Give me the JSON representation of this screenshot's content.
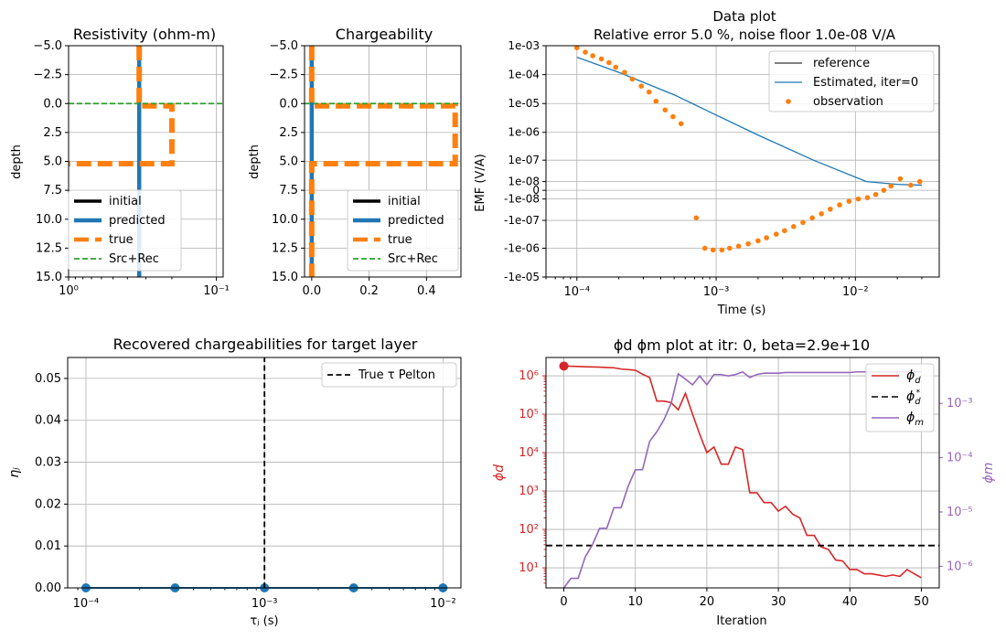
{
  "chart_data": [
    {
      "id": "resistivity",
      "type": "line",
      "title": "Resistivity (ohm-m)",
      "ylabel": "depth",
      "xscale": "log",
      "xlim": [
        1.0,
        0.09
      ],
      "ylim": [
        15,
        -5
      ],
      "yticks": [
        -5.0,
        -2.5,
        0.0,
        2.5,
        5.0,
        7.5,
        10.0,
        12.5,
        15.0
      ],
      "ytick_labels": [
        "−5.0",
        "−2.5",
        "0.0",
        "2.5",
        "5.0",
        "7.5",
        "10.0",
        "12.5",
        "15.0"
      ],
      "xticks": [
        1.0,
        0.1
      ],
      "xtick_labels": [
        "10⁰",
        "10⁻¹"
      ],
      "grid": true,
      "legend": "lower-left",
      "series": [
        {
          "name": "initial",
          "color": "#000000",
          "style": "solid",
          "points": [
            [
              0.333,
              -5
            ],
            [
              0.333,
              15
            ]
          ]
        },
        {
          "name": "predicted",
          "color": "#1f77b4",
          "style": "solid",
          "points": [
            [
              0.333,
              -5
            ],
            [
              0.333,
              15
            ]
          ]
        },
        {
          "name": "true",
          "color": "#ff7f0e",
          "style": "dashed",
          "points": [
            [
              0.333,
              -5
            ],
            [
              0.333,
              0.2
            ],
            [
              0.2,
              0.2
            ],
            [
              0.2,
              5.2
            ],
            [
              1.0,
              5.2
            ]
          ]
        },
        {
          "name": "Src+Rec",
          "color": "#2ca02c",
          "style": "dashed-thin",
          "points": [
            [
              1.0,
              0
            ],
            [
              0.09,
              0
            ]
          ]
        }
      ]
    },
    {
      "id": "chargeability",
      "type": "line",
      "title": "Chargeability",
      "ylabel": "depth",
      "xscale": "linear",
      "xlim": [
        -0.025,
        0.52
      ],
      "ylim": [
        15,
        -5
      ],
      "yticks": [
        -5.0,
        -2.5,
        0.0,
        2.5,
        5.0,
        7.5,
        10.0,
        12.5,
        15.0
      ],
      "ytick_labels": [
        "−5.0",
        "−2.5",
        "0.0",
        "2.5",
        "5.0",
        "7.5",
        "10.0",
        "12.5",
        "15.0"
      ],
      "xticks": [
        0.0,
        0.2,
        0.4
      ],
      "xtick_labels": [
        "0.0",
        "0.2",
        "0.4"
      ],
      "grid": true,
      "legend": "lower-right",
      "series": [
        {
          "name": "initial",
          "color": "#000000",
          "style": "solid",
          "points": [
            [
              0.0,
              -5
            ],
            [
              0.0,
              15
            ]
          ]
        },
        {
          "name": "predicted",
          "color": "#1f77b4",
          "style": "solid",
          "points": [
            [
              0.0,
              -5
            ],
            [
              0.0,
              15
            ]
          ]
        },
        {
          "name": "true",
          "color": "#ff7f0e",
          "style": "dashed",
          "points": [
            [
              0.0,
              -5
            ],
            [
              0.0,
              0.2
            ],
            [
              0.5,
              0.2
            ],
            [
              0.5,
              5.2
            ],
            [
              0.0,
              5.2
            ],
            [
              0.0,
              15
            ]
          ]
        },
        {
          "name": "Src+Rec",
          "color": "#2ca02c",
          "style": "dashed-thin",
          "points": [
            [
              -0.025,
              0
            ],
            [
              0.52,
              0
            ]
          ]
        }
      ]
    },
    {
      "id": "dataplot",
      "type": "line",
      "title": "Data plot",
      "subtitle": "Relative error 5.0 %, noise floor 1.0e-08 V/A",
      "xlabel": "Time (s)",
      "ylabel": "EMF (V/A)",
      "xscale": "log",
      "yscale": "symlog",
      "linthresh": 1e-08,
      "xlim": [
        6e-05,
        0.04
      ],
      "ylim": [
        -1e-05,
        0.001
      ],
      "xticks": [
        0.0001,
        0.001,
        0.01
      ],
      "xtick_labels": [
        "10⁻⁴",
        "10⁻³",
        "10⁻²"
      ],
      "yticks": [
        0.001,
        0.0001,
        1e-05,
        1e-06,
        1e-07,
        1e-08,
        0,
        -1e-08,
        -1e-07,
        -1e-06,
        -1e-05
      ],
      "ytick_labels": [
        "1e-03",
        "1e-04",
        "1e-05",
        "1e-06",
        "1e-07",
        "1e-08",
        "0",
        "-1e-08",
        "-1e-07",
        "-1e-06",
        "-1e-05"
      ],
      "grid": true,
      "legend": "upper-right",
      "series": [
        {
          "name": "reference",
          "color": "#333333",
          "style": "solid",
          "points": []
        },
        {
          "name": "Estimated, iter=0",
          "color": "#1f77b4",
          "style": "solid",
          "points": [
            [
              0.0001,
              0.0004
            ],
            [
              0.0002,
              0.00012
            ],
            [
              0.0005,
              2e-05
            ],
            [
              0.001,
              4e-06
            ],
            [
              0.002,
              8e-07
            ],
            [
              0.005,
              1e-07
            ],
            [
              0.012,
              1e-08
            ],
            [
              0.02,
              6e-09
            ],
            [
              0.03,
              5e-09
            ]
          ]
        },
        {
          "name": "observation",
          "color": "#ff7f0e",
          "style": "markers",
          "points": [
            [
              0.0001,
              0.00085
            ],
            [
              0.000115,
              0.0006
            ],
            [
              0.00013,
              0.00045
            ],
            [
              0.00015,
              0.00035
            ],
            [
              0.00017,
              0.00026
            ],
            [
              0.00019,
              0.00018
            ],
            [
              0.00022,
              0.00012
            ],
            [
              0.00025,
              7e-05
            ],
            [
              0.00029,
              4e-05
            ],
            [
              0.00033,
              2.5e-05
            ],
            [
              0.00037,
              1.2e-05
            ],
            [
              0.00043,
              6e-06
            ],
            [
              0.00049,
              3.5e-06
            ],
            [
              0.00056,
              2e-06
            ],
            [
              0.00072,
              -8e-08
            ],
            [
              0.00083,
              -1e-06
            ],
            [
              0.00095,
              -1.15e-06
            ],
            [
              0.0011,
              -1.15e-06
            ],
            [
              0.00125,
              -1e-06
            ],
            [
              0.00145,
              -8.5e-07
            ],
            [
              0.0017,
              -7e-07
            ],
            [
              0.002,
              -5.5e-07
            ],
            [
              0.0023,
              -4.3e-07
            ],
            [
              0.0027,
              -3.2e-07
            ],
            [
              0.0031,
              -2.4e-07
            ],
            [
              0.0036,
              -1.7e-07
            ],
            [
              0.0042,
              -1.2e-07
            ],
            [
              0.0049,
              -8e-08
            ],
            [
              0.0057,
              -5.5e-08
            ],
            [
              0.0066,
              -3.5e-08
            ],
            [
              0.0077,
              -2.2e-08
            ],
            [
              0.009,
              -1.4e-08
            ],
            [
              0.0105,
              -1e-08
            ],
            [
              0.0122,
              -8e-09
            ],
            [
              0.014,
              -4e-09
            ],
            [
              0.016,
              0
            ],
            [
              0.018,
              4e-09
            ],
            [
              0.021,
              1.5e-08
            ],
            [
              0.025,
              5e-09
            ],
            [
              0.029,
              1e-08
            ]
          ]
        }
      ]
    },
    {
      "id": "chargeabilities",
      "type": "line",
      "title": "Recovered chargeabilities for target layer",
      "xlabel": "τⱼ (s)",
      "ylabel": "ηⱼ",
      "xscale": "log",
      "xlim": [
        7.9e-05,
        0.0126
      ],
      "ylim": [
        0,
        0.055
      ],
      "xticks": [
        0.0001,
        0.001,
        0.01
      ],
      "xtick_labels": [
        "10⁻⁴",
        "10⁻³",
        "10⁻²"
      ],
      "yticks": [
        0.0,
        0.01,
        0.02,
        0.03,
        0.04,
        0.05
      ],
      "ytick_labels": [
        "0.00",
        "0.01",
        "0.02",
        "0.03",
        "0.04",
        "0.05"
      ],
      "grid": true,
      "legend": "upper-right",
      "series": [
        {
          "name": "",
          "color": "#1f77b4",
          "style": "line-markers",
          "points": [
            [
              0.0001,
              0
            ],
            [
              0.000316,
              0
            ],
            [
              0.001,
              0
            ],
            [
              0.00316,
              0
            ],
            [
              0.01,
              0
            ]
          ]
        },
        {
          "name": "True τ Pelton",
          "color": "#000000",
          "style": "dashed",
          "points": [
            [
              0.001,
              0
            ],
            [
              0.001,
              0.055
            ]
          ]
        }
      ]
    },
    {
      "id": "misfit",
      "type": "line",
      "title": "ϕd ϕm plot at itr:  0,  beta=2.9e+10",
      "xlabel": "Iteration",
      "ylabel": "ϕd",
      "ylabel_right": "ϕm",
      "xlim": [
        -2.5,
        52.5
      ],
      "ylim": [
        3,
        3000000.0
      ],
      "ylim_right": [
        4e-07,
        0.007
      ],
      "yscale": "log",
      "yscale_right": "log",
      "xticks": [
        0,
        10,
        20,
        30,
        40,
        50
      ],
      "xtick_labels": [
        "0",
        "10",
        "20",
        "30",
        "40",
        "50"
      ],
      "yticks": [
        10,
        100,
        1000,
        10000,
        100000,
        1000000
      ],
      "ytick_labels": [
        "10¹",
        "10²",
        "10³",
        "10⁴",
        "10⁵",
        "10⁶"
      ],
      "yticks_right": [
        1e-06,
        1e-05,
        0.0001,
        0.001
      ],
      "ytick_labels_right": [
        "10⁻⁶",
        "10⁻⁵",
        "10⁻⁴",
        "10⁻³"
      ],
      "grid": true,
      "legend": "upper-right",
      "series": [
        {
          "name": "ϕd",
          "color": "#d62728",
          "axis": "left",
          "x": [
            0,
            1,
            2,
            3,
            4,
            5,
            6,
            7,
            8,
            9,
            10,
            11,
            12,
            13,
            14,
            15,
            16,
            17,
            18,
            19,
            20,
            21,
            22,
            23,
            24,
            25,
            26,
            27,
            28,
            29,
            30,
            31,
            32,
            33,
            34,
            35,
            36,
            37,
            38,
            39,
            40,
            41,
            42,
            43,
            44,
            45,
            46,
            47,
            48,
            49,
            50
          ],
          "y": [
            1800000.0,
            1780000.0,
            1750000.0,
            1720000.0,
            1700000.0,
            1680000.0,
            1650000.0,
            1620000.0,
            1500000.0,
            1450000.0,
            1400000.0,
            1100000.0,
            900000.0,
            220000.0,
            220000.0,
            200000.0,
            130000.0,
            350000.0,
            100000.0,
            30000.0,
            10000.0,
            14000.0,
            5000.0,
            5000.0,
            14000.0,
            12000.0,
            900,
            900,
            500,
            500,
            300,
            400,
            250,
            200,
            70,
            70,
            35,
            30,
            16,
            15,
            9,
            9,
            7,
            7,
            6.5,
            6,
            6.5,
            6,
            9,
            7,
            5.5
          ]
        },
        {
          "name": "ϕd*",
          "color": "#000000",
          "axis": "left",
          "style": "dashed",
          "x": [
            -2.5,
            52.5
          ],
          "y": [
            38,
            38
          ]
        },
        {
          "name": "ϕm",
          "color": "#9467bd",
          "axis": "right",
          "x": [
            0,
            1,
            2,
            3,
            4,
            5,
            6,
            7,
            8,
            9,
            10,
            11,
            12,
            13,
            14,
            15,
            16,
            17,
            18,
            19,
            20,
            21,
            22,
            23,
            24,
            25,
            26,
            27,
            28,
            29,
            30,
            31,
            32,
            33,
            34,
            35,
            36,
            37,
            38,
            39,
            40,
            41,
            42,
            43,
            44,
            45,
            46,
            47,
            48,
            49,
            50
          ],
          "y": [
            3e-07,
            6e-07,
            6e-07,
            1.5e-06,
            2.5e-06,
            5e-06,
            5e-06,
            1.2e-05,
            1.2e-05,
            3e-05,
            6e-05,
            6e-05,
            0.0002,
            0.0003,
            0.0005,
            0.001,
            0.0035,
            0.0028,
            0.0022,
            0.0032,
            0.0022,
            0.0034,
            0.0034,
            0.0032,
            0.0034,
            0.0038,
            0.003,
            0.0034,
            0.0036,
            0.0036,
            0.0036,
            0.0037,
            0.0037,
            0.0037,
            0.0037,
            0.0037,
            0.0037,
            0.0037,
            0.0037,
            0.0037,
            0.0037,
            0.0038,
            0.0038,
            0.0038,
            0.0038,
            0.0038,
            0.0038,
            0.0038,
            0.0038,
            0.0038,
            0.0038
          ]
        }
      ],
      "current_point": {
        "x": 0,
        "y": 1800000.0
      }
    }
  ]
}
